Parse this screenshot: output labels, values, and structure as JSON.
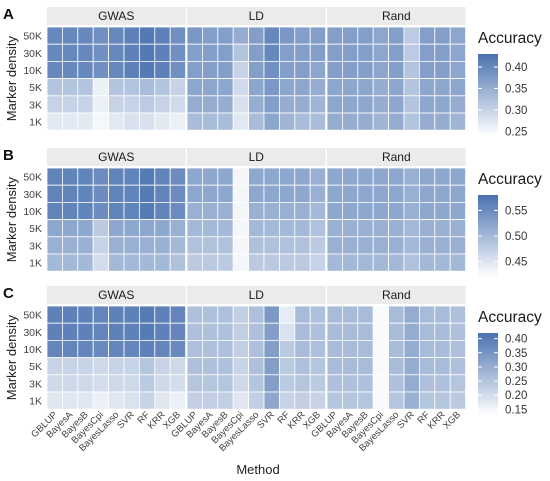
{
  "figure": {
    "x_axis_title": "Method",
    "y_axis_title": "Marker density",
    "legend_title": "Accuracy",
    "colors": {
      "low": "#ffffff",
      "high": "#4a72b0",
      "cell_border": "#ffffff",
      "facet_bg": "#ebebeb"
    }
  },
  "chart_data": [
    {
      "type": "heatmap",
      "panel": "A",
      "facets": [
        "GWAS",
        "LD",
        "Rand"
      ],
      "y_categories": [
        "50K",
        "30K",
        "10K",
        "5K",
        "3K",
        "1K"
      ],
      "methods": [
        "GBLUP",
        "BayesA",
        "BayesB",
        "BayesCpi",
        "BayesLasso",
        "SVR",
        "RF",
        "KRR",
        "XGB"
      ],
      "legend": {
        "title": "Accuracy",
        "ticks": [
          0.4,
          0.35,
          0.3,
          0.25
        ],
        "range": [
          0.24,
          0.43
        ]
      },
      "values": {
        "GWAS": [
          [
            0.4,
            0.4,
            0.4,
            0.39,
            0.4,
            0.41,
            0.42,
            0.41,
            0.39
          ],
          [
            0.4,
            0.4,
            0.4,
            0.39,
            0.4,
            0.41,
            0.42,
            0.41,
            0.39
          ],
          [
            0.4,
            0.4,
            0.4,
            0.39,
            0.4,
            0.41,
            0.42,
            0.41,
            0.39
          ],
          [
            0.32,
            0.32,
            0.32,
            0.26,
            0.32,
            0.32,
            0.33,
            0.32,
            0.3
          ],
          [
            0.3,
            0.3,
            0.3,
            0.26,
            0.3,
            0.3,
            0.31,
            0.3,
            0.29
          ],
          [
            0.27,
            0.27,
            0.27,
            0.25,
            0.27,
            0.28,
            0.28,
            0.27,
            0.26
          ]
        ],
        "LD": [
          [
            0.38,
            0.37,
            0.37,
            0.35,
            0.37,
            0.4,
            0.38,
            0.37,
            0.37
          ],
          [
            0.37,
            0.37,
            0.37,
            0.32,
            0.37,
            0.4,
            0.37,
            0.37,
            0.37
          ],
          [
            0.37,
            0.37,
            0.37,
            0.3,
            0.37,
            0.39,
            0.37,
            0.37,
            0.36
          ],
          [
            0.36,
            0.36,
            0.36,
            0.29,
            0.36,
            0.38,
            0.36,
            0.36,
            0.35
          ],
          [
            0.35,
            0.35,
            0.35,
            0.28,
            0.35,
            0.37,
            0.35,
            0.35,
            0.34
          ],
          [
            0.33,
            0.33,
            0.33,
            0.27,
            0.33,
            0.36,
            0.34,
            0.33,
            0.33
          ]
        ],
        "Rand": [
          [
            0.37,
            0.37,
            0.37,
            0.36,
            0.37,
            0.31,
            0.37,
            0.37,
            0.36
          ],
          [
            0.37,
            0.37,
            0.37,
            0.36,
            0.37,
            0.31,
            0.37,
            0.37,
            0.36
          ],
          [
            0.37,
            0.37,
            0.37,
            0.36,
            0.37,
            0.32,
            0.37,
            0.37,
            0.36
          ],
          [
            0.36,
            0.36,
            0.36,
            0.35,
            0.36,
            0.32,
            0.36,
            0.36,
            0.36
          ],
          [
            0.36,
            0.36,
            0.36,
            0.35,
            0.36,
            0.32,
            0.36,
            0.36,
            0.35
          ],
          [
            0.35,
            0.35,
            0.35,
            0.34,
            0.35,
            0.32,
            0.35,
            0.35,
            0.34
          ]
        ]
      }
    },
    {
      "type": "heatmap",
      "panel": "B",
      "facets": [
        "GWAS",
        "LD",
        "Rand"
      ],
      "y_categories": [
        "50K",
        "30K",
        "10K",
        "5K",
        "3K",
        "1K"
      ],
      "methods": [
        "GBLUP",
        "BayesA",
        "BayesB",
        "BayesCpi",
        "BayesLasso",
        "SVR",
        "RF",
        "KRR",
        "XGB"
      ],
      "legend": {
        "title": "Accuracy",
        "ticks": [
          0.55,
          0.5,
          0.45
        ],
        "range": [
          0.42,
          0.58
        ]
      },
      "values": {
        "GWAS": [
          [
            0.56,
            0.56,
            0.56,
            0.55,
            0.56,
            0.56,
            0.57,
            0.56,
            0.55
          ],
          [
            0.56,
            0.56,
            0.56,
            0.55,
            0.56,
            0.56,
            0.57,
            0.56,
            0.55
          ],
          [
            0.56,
            0.56,
            0.56,
            0.55,
            0.56,
            0.56,
            0.57,
            0.56,
            0.55
          ],
          [
            0.52,
            0.52,
            0.52,
            0.48,
            0.52,
            0.52,
            0.52,
            0.52,
            0.51
          ],
          [
            0.51,
            0.51,
            0.51,
            0.47,
            0.51,
            0.51,
            0.51,
            0.51,
            0.5
          ],
          [
            0.5,
            0.5,
            0.5,
            0.46,
            0.5,
            0.5,
            0.5,
            0.5,
            0.49
          ]
        ],
        "LD": [
          [
            0.52,
            0.52,
            0.52,
            0.43,
            0.52,
            0.52,
            0.52,
            0.52,
            0.51
          ],
          [
            0.52,
            0.52,
            0.52,
            0.43,
            0.52,
            0.52,
            0.52,
            0.52,
            0.51
          ],
          [
            0.51,
            0.51,
            0.51,
            0.43,
            0.51,
            0.51,
            0.51,
            0.51,
            0.5
          ],
          [
            0.5,
            0.5,
            0.5,
            0.43,
            0.5,
            0.5,
            0.5,
            0.5,
            0.49
          ],
          [
            0.49,
            0.49,
            0.49,
            0.43,
            0.49,
            0.49,
            0.49,
            0.49,
            0.48
          ],
          [
            0.48,
            0.48,
            0.48,
            0.43,
            0.48,
            0.48,
            0.48,
            0.48,
            0.47
          ]
        ],
        "Rand": [
          [
            0.52,
            0.52,
            0.52,
            0.52,
            0.52,
            0.51,
            0.52,
            0.52,
            0.52
          ],
          [
            0.52,
            0.52,
            0.52,
            0.52,
            0.52,
            0.51,
            0.52,
            0.52,
            0.52
          ],
          [
            0.52,
            0.52,
            0.52,
            0.52,
            0.52,
            0.51,
            0.52,
            0.52,
            0.52
          ],
          [
            0.51,
            0.51,
            0.51,
            0.51,
            0.51,
            0.5,
            0.51,
            0.51,
            0.51
          ],
          [
            0.51,
            0.51,
            0.51,
            0.51,
            0.51,
            0.5,
            0.51,
            0.51,
            0.51
          ],
          [
            0.5,
            0.5,
            0.5,
            0.5,
            0.5,
            0.49,
            0.5,
            0.5,
            0.5
          ]
        ]
      }
    },
    {
      "type": "heatmap",
      "panel": "C",
      "facets": [
        "GWAS",
        "LD",
        "Rand"
      ],
      "y_categories": [
        "50K",
        "30K",
        "10K",
        "5K",
        "3K",
        "1K"
      ],
      "methods": [
        "GBLUP",
        "BayesA",
        "BayesB",
        "BayesCpi",
        "BayesLasso",
        "SVR",
        "RF",
        "KRR",
        "XGB"
      ],
      "legend": {
        "title": "Accuracy",
        "ticks": [
          0.4,
          0.35,
          0.3,
          0.25,
          0.2,
          0.15
        ],
        "range": [
          0.13,
          0.42
        ]
      },
      "values": {
        "GWAS": [
          [
            0.39,
            0.39,
            0.39,
            0.38,
            0.39,
            0.39,
            0.4,
            0.39,
            0.38
          ],
          [
            0.39,
            0.39,
            0.39,
            0.38,
            0.39,
            0.39,
            0.4,
            0.39,
            0.38
          ],
          [
            0.38,
            0.38,
            0.38,
            0.37,
            0.38,
            0.38,
            0.39,
            0.38,
            0.37
          ],
          [
            0.22,
            0.22,
            0.22,
            0.21,
            0.22,
            0.22,
            0.25,
            0.22,
            0.21
          ],
          [
            0.21,
            0.21,
            0.21,
            0.2,
            0.21,
            0.21,
            0.24,
            0.21,
            0.2
          ],
          [
            0.18,
            0.18,
            0.18,
            0.16,
            0.18,
            0.19,
            0.22,
            0.18,
            0.16
          ]
        ],
        "LD": [
          [
            0.26,
            0.26,
            0.26,
            0.23,
            0.26,
            0.34,
            0.17,
            0.27,
            0.26
          ],
          [
            0.26,
            0.26,
            0.26,
            0.23,
            0.26,
            0.33,
            0.19,
            0.27,
            0.26
          ],
          [
            0.26,
            0.26,
            0.26,
            0.23,
            0.26,
            0.33,
            0.24,
            0.27,
            0.26
          ],
          [
            0.26,
            0.26,
            0.26,
            0.22,
            0.26,
            0.33,
            0.24,
            0.26,
            0.25
          ],
          [
            0.25,
            0.25,
            0.25,
            0.21,
            0.25,
            0.33,
            0.24,
            0.25,
            0.24
          ],
          [
            0.23,
            0.23,
            0.23,
            0.18,
            0.23,
            0.31,
            0.22,
            0.23,
            0.22
          ]
        ],
        "Rand": [
          [
            0.27,
            0.27,
            0.27,
            0.14,
            0.27,
            0.3,
            0.27,
            0.27,
            0.26
          ],
          [
            0.27,
            0.27,
            0.27,
            0.14,
            0.27,
            0.3,
            0.27,
            0.27,
            0.26
          ],
          [
            0.27,
            0.27,
            0.27,
            0.14,
            0.27,
            0.3,
            0.27,
            0.27,
            0.26
          ],
          [
            0.27,
            0.27,
            0.27,
            0.14,
            0.27,
            0.3,
            0.27,
            0.27,
            0.26
          ],
          [
            0.26,
            0.26,
            0.26,
            0.14,
            0.26,
            0.3,
            0.26,
            0.26,
            0.25
          ],
          [
            0.25,
            0.25,
            0.25,
            0.14,
            0.25,
            0.29,
            0.25,
            0.25,
            0.24
          ]
        ]
      }
    }
  ]
}
